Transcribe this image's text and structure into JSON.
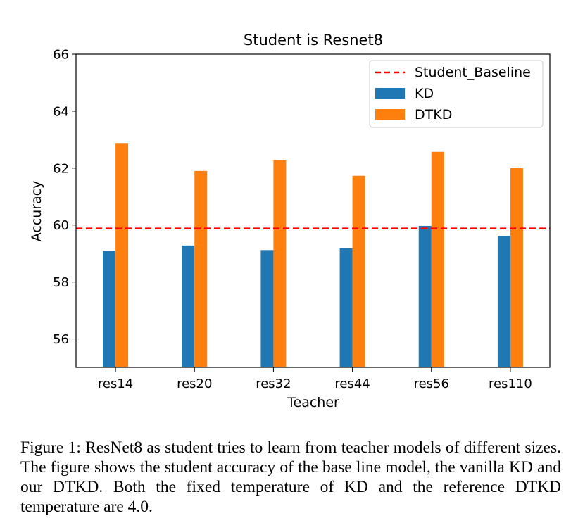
{
  "chart_data": {
    "type": "bar",
    "title": "Student is Resnet8",
    "xlabel": "Teacher",
    "ylabel": "Accuracy",
    "ylim": [
      55,
      66
    ],
    "yticks": [
      56,
      58,
      60,
      62,
      64,
      66
    ],
    "categories": [
      "res14",
      "res20",
      "res32",
      "res44",
      "res56",
      "res110"
    ],
    "series": [
      {
        "name": "KD",
        "color": "#1f77b4",
        "values": [
          59.1,
          59.28,
          59.12,
          59.18,
          59.97,
          59.62
        ]
      },
      {
        "name": "DTKD",
        "color": "#ff7f0e",
        "values": [
          62.88,
          61.9,
          62.27,
          61.73,
          62.57,
          62.0
        ]
      }
    ],
    "baseline": {
      "name": "Student_Baseline",
      "value": 59.88,
      "color": "#ff0000",
      "style": "dashed"
    },
    "legend_position": "top-right",
    "grid": false
  },
  "caption": {
    "label": "Figure 1:",
    "text": "ResNet8 as student tries to learn from teacher models of different sizes. The figure shows the student accuracy of the base line model, the vanilla KD and our DTKD. Both the fixed temperature of KD and the reference DTKD temperature are 4.0."
  }
}
